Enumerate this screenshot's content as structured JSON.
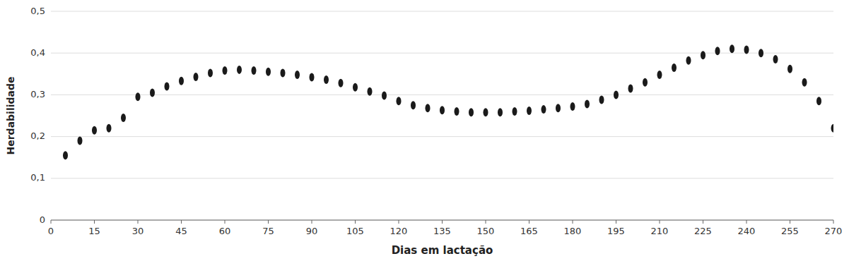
{
  "chart_data": {
    "type": "scatter",
    "x": [
      5,
      10,
      15,
      20,
      25,
      30,
      35,
      40,
      45,
      50,
      55,
      60,
      65,
      70,
      75,
      80,
      85,
      90,
      95,
      100,
      105,
      110,
      115,
      120,
      125,
      130,
      135,
      140,
      145,
      150,
      155,
      160,
      165,
      170,
      175,
      180,
      185,
      190,
      195,
      200,
      205,
      210,
      215,
      220,
      225,
      230,
      235,
      240,
      245,
      250,
      255,
      260,
      265,
      270
    ],
    "values": [
      0.155,
      0.19,
      0.215,
      0.22,
      0.245,
      0.295,
      0.305,
      0.32,
      0.333,
      0.343,
      0.352,
      0.358,
      0.36,
      0.358,
      0.355,
      0.352,
      0.348,
      0.342,
      0.336,
      0.328,
      0.318,
      0.308,
      0.298,
      0.285,
      0.275,
      0.268,
      0.263,
      0.26,
      0.258,
      0.258,
      0.258,
      0.26,
      0.262,
      0.265,
      0.268,
      0.272,
      0.278,
      0.288,
      0.3,
      0.315,
      0.33,
      0.348,
      0.365,
      0.382,
      0.395,
      0.405,
      0.41,
      0.408,
      0.4,
      0.385,
      0.362,
      0.33,
      0.285,
      0.22
    ],
    "xlabel": "Dias em lactação",
    "ylabel": "Herdabilidade",
    "xlim": [
      0,
      270
    ],
    "ylim": [
      0,
      0.5
    ],
    "xticks": [
      0,
      15,
      30,
      45,
      60,
      75,
      90,
      105,
      120,
      135,
      150,
      165,
      180,
      195,
      210,
      225,
      240,
      255,
      270
    ],
    "yticks": [
      0,
      {
        "value": 0.1,
        "label": "0,1"
      },
      {
        "value": 0.2,
        "label": "0,2"
      },
      {
        "value": 0.3,
        "label": "0,3"
      },
      {
        "value": 0.4,
        "label": "0,4"
      },
      {
        "value": 0.5,
        "label": "0,5"
      }
    ],
    "grid": true,
    "color": "#1a1a1a",
    "marker": "ellipse"
  }
}
